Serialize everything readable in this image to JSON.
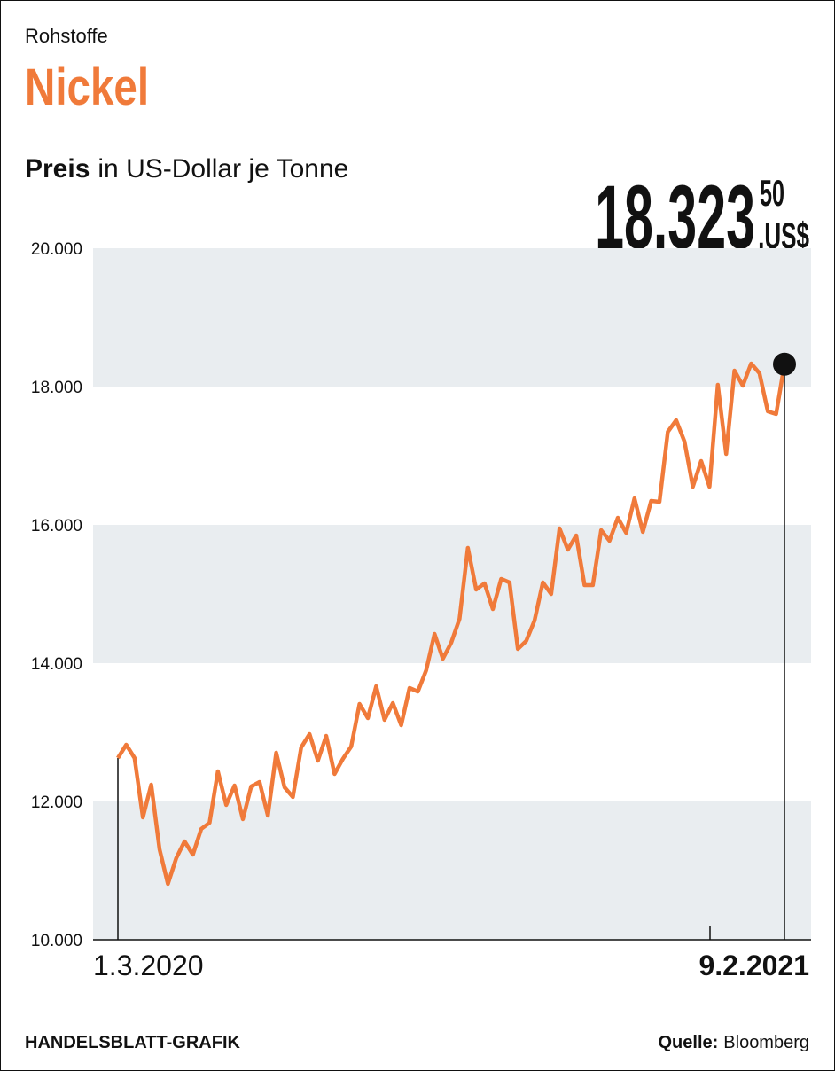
{
  "kicker": "Rohstoffe",
  "chart_data": {
    "type": "line",
    "title": "Nickel",
    "subtitle_bold": "Preis",
    "subtitle": "in US-Dollar je Tonne",
    "annotation": {
      "value": "18.323",
      "cents": "50",
      "unit": ",US$"
    },
    "color": "#f07a3a",
    "grid": "bands",
    "categories": [
      "1.3.2020",
      null,
      null,
      null,
      null,
      null,
      null,
      null,
      null,
      null,
      null,
      null,
      null,
      null,
      null,
      null,
      null,
      null,
      null,
      null,
      null,
      null,
      null,
      null,
      null,
      null,
      null,
      null,
      null,
      null,
      null,
      null,
      null,
      null,
      null,
      null,
      null,
      null,
      null,
      null,
      null,
      null,
      null,
      null,
      null,
      null,
      null,
      null,
      null,
      null,
      null,
      null,
      null,
      null,
      null,
      null,
      null,
      null,
      null,
      null,
      null,
      null,
      null,
      null,
      null,
      null,
      null,
      null,
      null,
      null,
      null,
      null,
      null,
      null,
      null,
      null,
      null,
      null,
      null,
      null,
      "9.2.2021"
    ],
    "values": [
      12628,
      12821,
      12628,
      11769,
      12244,
      11308,
      10808,
      11179,
      11423,
      11231,
      11603,
      11692,
      12436,
      11949,
      12231,
      11744,
      12218,
      12282,
      11795,
      12705,
      12205,
      12064,
      12782,
      12974,
      12590,
      12949,
      12397,
      12615,
      12795,
      13410,
      13205,
      13667,
      13179,
      13423,
      13103,
      13641,
      13590,
      13897,
      14423,
      14064,
      14295,
      14641,
      15667,
      15064,
      15154,
      14782,
      15218,
      15167,
      14205,
      14321,
      14615,
      15167,
      15000,
      15949,
      15641,
      15846,
      15128,
      15128,
      15923,
      15769,
      16103,
      15885,
      16385,
      15897,
      16346,
      16333,
      17346,
      17513,
      17205,
      16551,
      16923,
      16551,
      18026,
      17026,
      18231,
      18013,
      18333,
      18192,
      17641,
      17603,
      18323.5
    ],
    "ylim": [
      10000,
      20000
    ],
    "yticks": [
      {
        "value": 10000,
        "label": "10.000"
      },
      {
        "value": 12000,
        "label": "12.000"
      },
      {
        "value": 14000,
        "label": "14.000"
      },
      {
        "value": 16000,
        "label": "16.000"
      },
      {
        "value": 18000,
        "label": "18.000"
      },
      {
        "value": 20000,
        "label": "20.000"
      }
    ]
  },
  "footer": {
    "credit": "HANDELSBLATT-GRAFIK",
    "source_label": "Quelle:",
    "source": "Bloomberg"
  }
}
